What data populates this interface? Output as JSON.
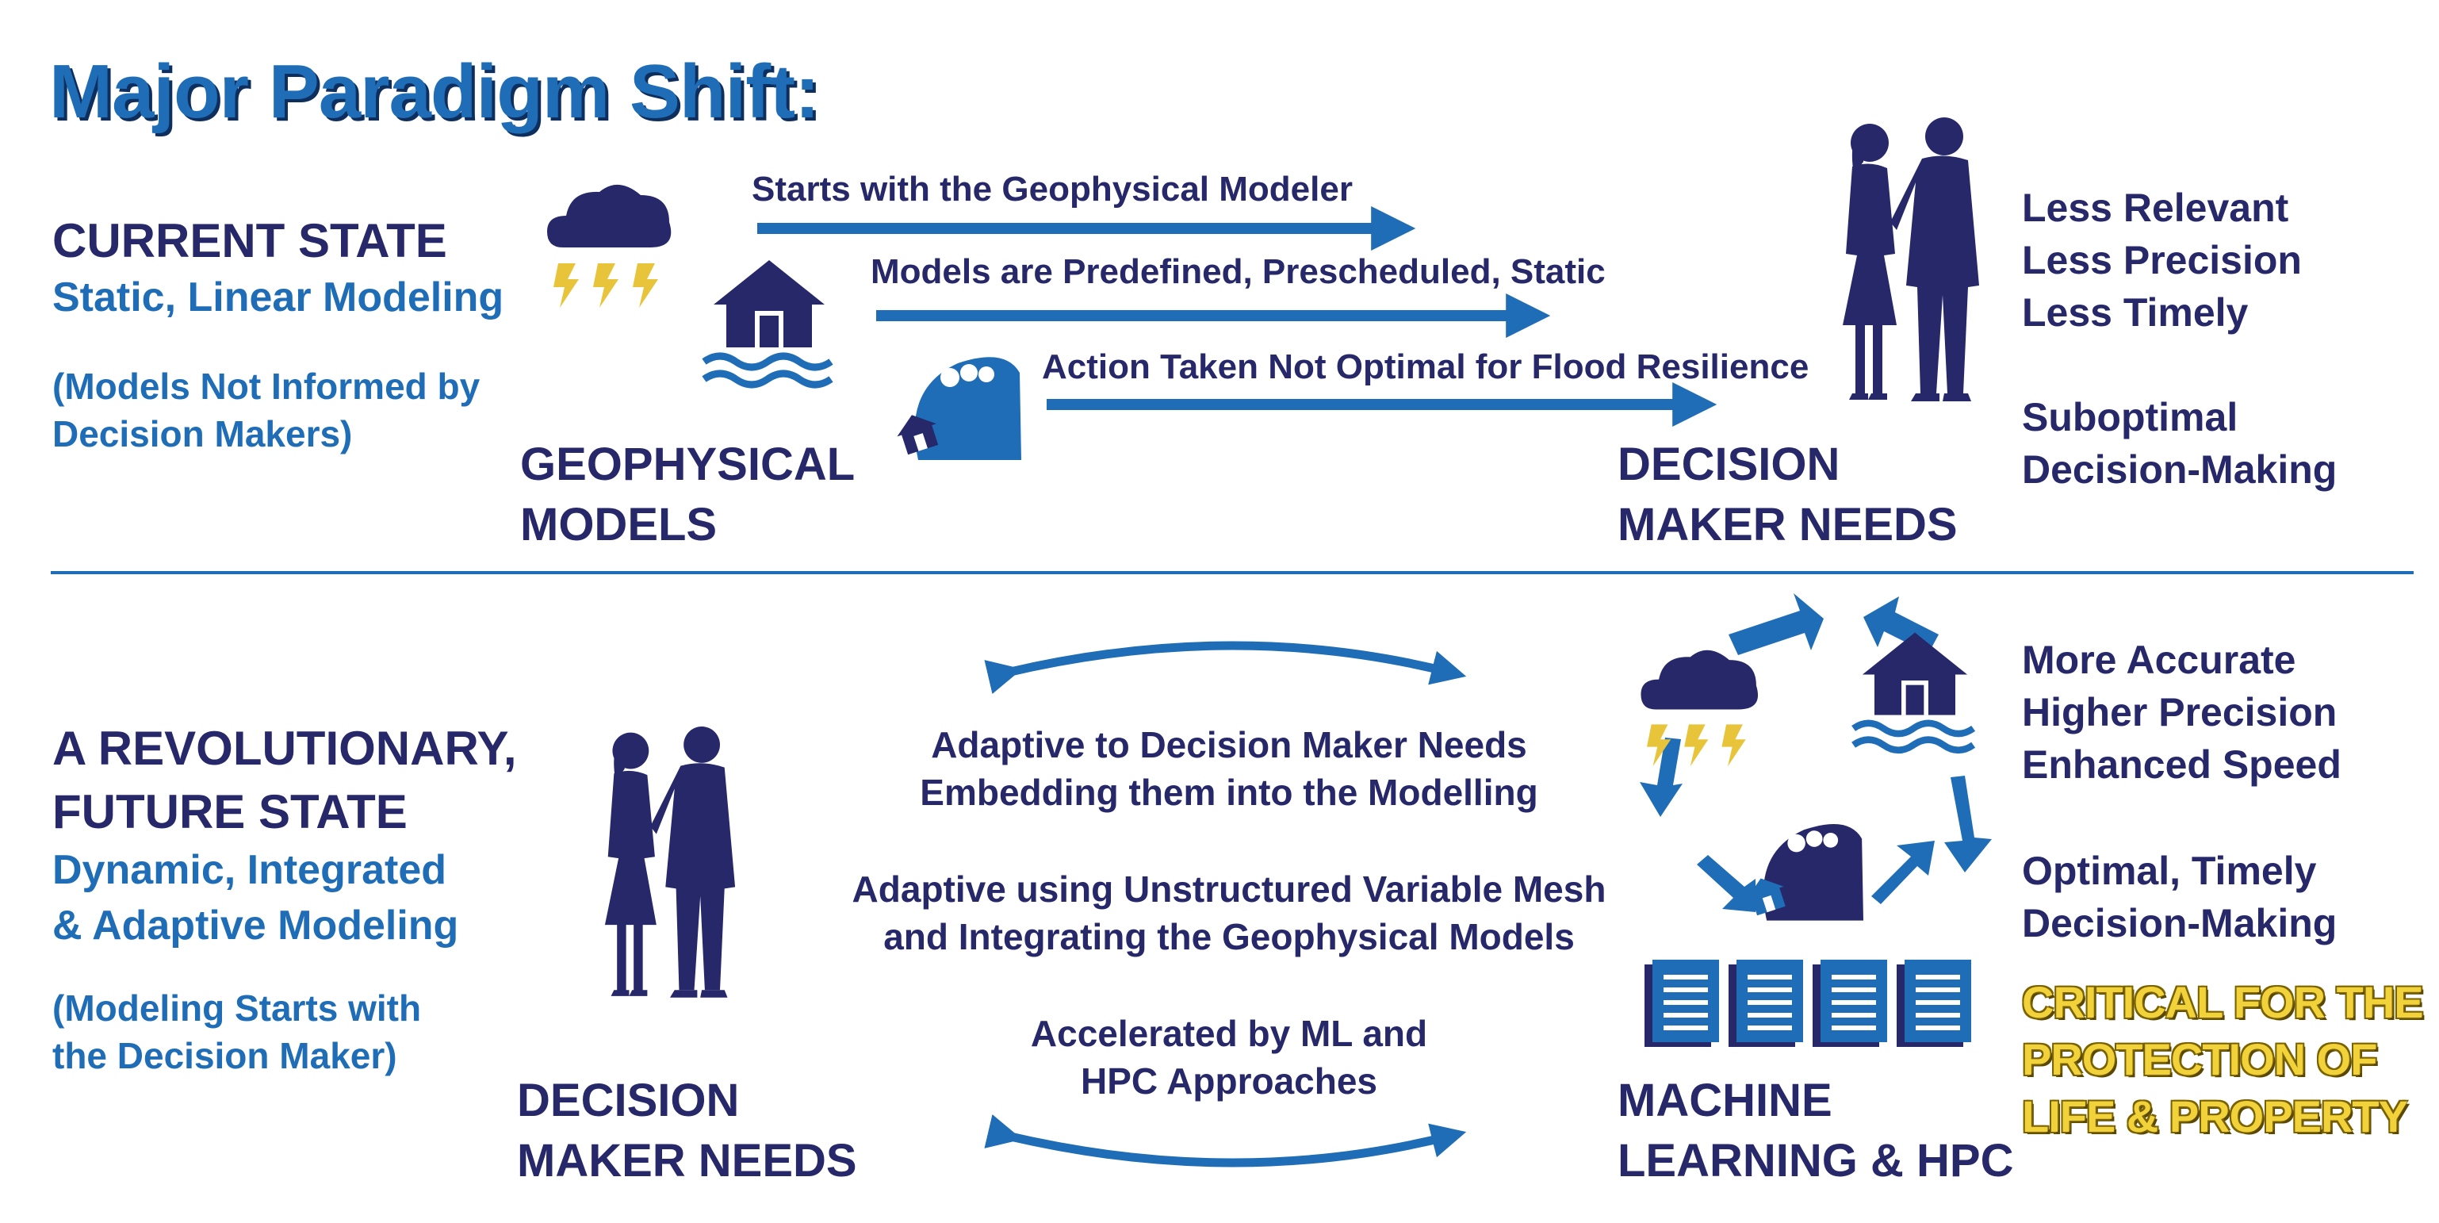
{
  "title": "Major Paradigm Shift:",
  "current": {
    "heading": "CURRENT STATE",
    "subtitle": "Static, Linear Modeling",
    "note_line1": "(Models Not Informed by",
    "note_line2": "Decision Makers)",
    "left_label_line1": "GEOPHYSICAL",
    "left_label_line2": "MODELS",
    "right_label_line1": "DECISION",
    "right_label_line2": "MAKER NEEDS",
    "arrows": [
      "Starts with the Geophysical Modeler",
      "Models are Predefined, Prescheduled, Static",
      "Action Taken Not Optimal for Flood Resilience"
    ],
    "outcomes": [
      "Less Relevant",
      "Less Precision",
      "Less Timely",
      "Suboptimal",
      "Decision-Making"
    ]
  },
  "future": {
    "heading_line1": "A REVOLUTIONARY,",
    "heading_line2": "FUTURE STATE",
    "subtitle_line1": "Dynamic, Integrated",
    "subtitle_line2": "& Adaptive Modeling",
    "note_line1": "(Modeling Starts with",
    "note_line2": "the Decision Maker)",
    "left_label_line1": "DECISION",
    "left_label_line2": "MAKER NEEDS",
    "right_label_line1": "MACHINE",
    "right_label_line2": "LEARNING & HPC",
    "middle": [
      "Adaptive to Decision Maker Needs",
      "Embedding them into the Modelling",
      "Adaptive using Unstructured Variable Mesh",
      "and Integrating the Geophysical Models",
      "Accelerated by ML and",
      "HPC Approaches"
    ],
    "outcomes": [
      "More Accurate",
      "Higher Precision",
      "Enhanced Speed",
      "Optimal, Timely",
      "Decision-Making"
    ],
    "critical_line1": "CRITICAL FOR THE",
    "critical_line2": "PROTECTION OF",
    "critical_line3": "LIFE & PROPERTY"
  },
  "colors": {
    "navy": "#27286a",
    "blue": "#1f6db6",
    "yellow": "#f2d23a"
  },
  "icons": [
    "storm-cloud-icon",
    "flooded-house-icon",
    "tidal-wave-icon",
    "business-people-icon",
    "document-icon",
    "cycle-arrow-icon"
  ]
}
